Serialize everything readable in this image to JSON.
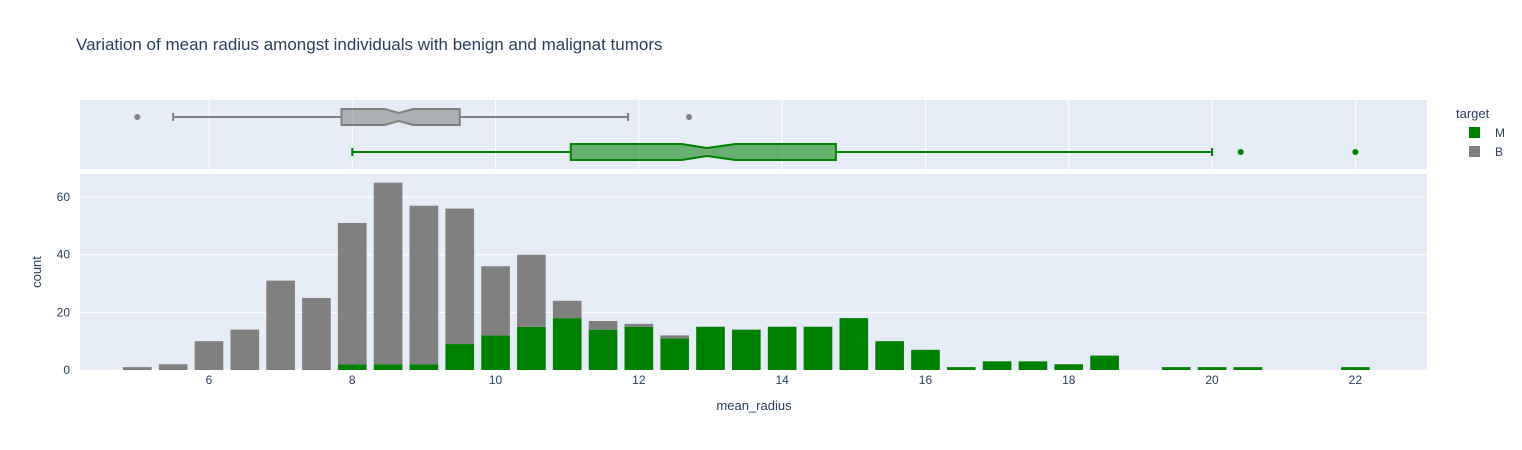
{
  "chart_data": {
    "type": "bar",
    "title": "Variation of mean radius amongst individuals with benign and malignat tumors",
    "xlabel": "mean_radius",
    "ylabel": "count",
    "xlim": [
      4.2,
      23.0
    ],
    "ylim": [
      0,
      68
    ],
    "xticks": [
      6,
      8,
      10,
      12,
      14,
      16,
      18,
      20,
      22
    ],
    "yticks": [
      0,
      20,
      40,
      60
    ],
    "grid": true,
    "barmode": "stack",
    "legend_title": "target",
    "legend_position": "right",
    "colors": {
      "M": "#008000",
      "B": "#808080",
      "plot_bg": "#e5ecf6"
    },
    "bins": {
      "start": 5.0,
      "width": 0.5,
      "centers": [
        5.0,
        5.5,
        6.0,
        6.5,
        7.0,
        7.5,
        8.0,
        8.5,
        9.0,
        9.5,
        10.0,
        10.5,
        11.0,
        11.5,
        12.0,
        12.5,
        13.0,
        13.5,
        14.0,
        14.5,
        15.0,
        15.5,
        16.0,
        16.5,
        17.0,
        17.5,
        18.0,
        18.5,
        19.0,
        19.5,
        20.0,
        20.5,
        21.0,
        21.5,
        22.0
      ]
    },
    "series": [
      {
        "name": "M",
        "values": [
          0,
          0,
          0,
          0,
          0,
          0,
          2,
          2,
          2,
          9,
          12,
          15,
          18,
          14,
          15,
          11,
          15,
          14,
          15,
          15,
          18,
          10,
          7,
          1,
          3,
          3,
          2,
          5,
          0,
          1,
          1,
          1,
          0,
          0,
          1
        ]
      },
      {
        "name": "B",
        "values": [
          1,
          2,
          10,
          14,
          31,
          25,
          49,
          63,
          55,
          47,
          24,
          25,
          6,
          3,
          1,
          1,
          0,
          0,
          0,
          0,
          0,
          0,
          0,
          0,
          0,
          0,
          0,
          0,
          0,
          0,
          0,
          0,
          0,
          0,
          0
        ]
      }
    ],
    "boxplots": [
      {
        "name": "B",
        "lowerfence": 5.5,
        "q1": 7.85,
        "median": 8.65,
        "q3": 9.5,
        "upperfence": 11.85,
        "notch_low": 8.45,
        "notch_high": 8.85,
        "outliers": [
          5.0,
          12.7
        ]
      },
      {
        "name": "M",
        "lowerfence": 8.0,
        "q1": 11.05,
        "median": 12.95,
        "q3": 14.75,
        "upperfence": 20.0,
        "notch_low": 12.6,
        "notch_high": 13.35,
        "outliers": [
          20.4,
          22.0
        ]
      }
    ]
  }
}
